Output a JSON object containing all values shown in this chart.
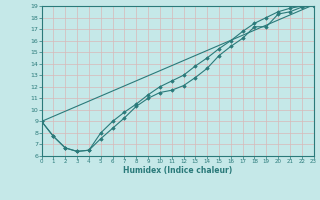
{
  "bg_color": "#c5e8e8",
  "grid_color": "#d8b8b8",
  "line_color": "#2a7a7a",
  "xlabel": "Humidex (Indice chaleur)",
  "xlim": [
    0,
    23
  ],
  "ylim": [
    6,
    19
  ],
  "xticks": [
    0,
    1,
    2,
    3,
    4,
    5,
    6,
    7,
    8,
    9,
    10,
    11,
    12,
    13,
    14,
    15,
    16,
    17,
    18,
    19,
    20,
    21,
    22,
    23
  ],
  "yticks": [
    6,
    7,
    8,
    9,
    10,
    11,
    12,
    13,
    14,
    15,
    16,
    17,
    18,
    19
  ],
  "line1_x": [
    0,
    1,
    2,
    3,
    4,
    5,
    6,
    7,
    8,
    9,
    10,
    11,
    12,
    13,
    14,
    15,
    16,
    17,
    18,
    19,
    20,
    21,
    22,
    23
  ],
  "line1_y": [
    9.0,
    7.7,
    6.7,
    6.4,
    6.5,
    7.5,
    8.4,
    9.3,
    10.3,
    11.0,
    11.5,
    11.7,
    12.1,
    12.8,
    13.6,
    14.7,
    15.5,
    16.2,
    17.2,
    17.2,
    18.3,
    18.5,
    18.9,
    19.0
  ],
  "line2_x": [
    0,
    1,
    2,
    3,
    4,
    5,
    6,
    7,
    8,
    9,
    10,
    11,
    12,
    13,
    14,
    15,
    16,
    17,
    18,
    19,
    20,
    21,
    22,
    23
  ],
  "line2_y": [
    9.0,
    7.7,
    6.7,
    6.4,
    6.5,
    8.0,
    9.0,
    9.8,
    10.5,
    11.3,
    12.0,
    12.5,
    13.0,
    13.8,
    14.5,
    15.3,
    16.0,
    16.8,
    17.5,
    18.0,
    18.5,
    18.8,
    19.0,
    19.1
  ],
  "line3_x": [
    0,
    23
  ],
  "line3_y": [
    9.0,
    19.1
  ],
  "figsize": [
    3.2,
    2.0
  ],
  "dpi": 100
}
